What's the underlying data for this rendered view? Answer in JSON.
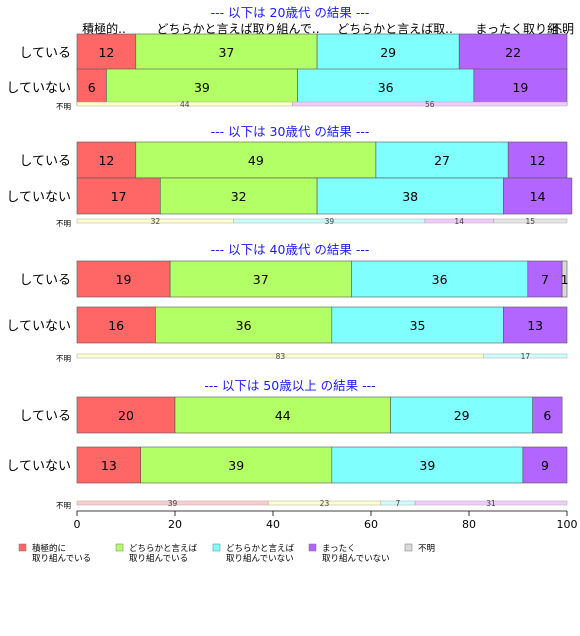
{
  "chart_data": {
    "type": "bar",
    "orientation": "horizontal",
    "stacked": "percent",
    "xlim": [
      0,
      100
    ],
    "x_ticks": [
      "0",
      "20",
      "40",
      "60",
      "80",
      "100"
    ],
    "column_headers": [
      "積極的..",
      "どちらかと言えば取り組んで..",
      "どちらかと言えば取..",
      "まったく取り組..",
      "不明"
    ],
    "categories": [
      "積極的に取り組んでいる",
      "どちらかと言えば取り組んでいる",
      "どちらかと言えば取り組んでいない",
      "まったく取り組んでいない",
      "不明"
    ],
    "legend": [
      {
        "lines": [
          "積極的に",
          "取り組んでいる"
        ],
        "color": "#ff6666"
      },
      {
        "lines": [
          "どちらかと言えば",
          "取り組んでいる"
        ],
        "color": "#b3ff66"
      },
      {
        "lines": [
          "どちらかと言えば",
          "取り組んでいない"
        ],
        "color": "#80ffff"
      },
      {
        "lines": [
          "まったく",
          "取り組んでいない"
        ],
        "color": "#b366ff"
      },
      {
        "lines": [
          "不明"
        ],
        "color": "#d9d9d9"
      }
    ],
    "legend_position": "bottom-left",
    "panels": [
      {
        "title": "--- 以下は 20歳代 の結果 ---",
        "rows": [
          {
            "label": "している",
            "values": [
              12,
              37,
              29,
              22,
              0
            ]
          },
          {
            "label": "していない",
            "values": [
              6,
              39,
              36,
              19,
              0
            ]
          }
        ],
        "unknown": {
          "label": "不明",
          "values": [
            0,
            44,
            0,
            56,
            0
          ]
        }
      },
      {
        "title": "--- 以下は 30歳代 の結果 ---",
        "rows": [
          {
            "label": "している",
            "values": [
              12,
              49,
              27,
              12,
              0
            ]
          },
          {
            "label": "していない",
            "values": [
              17,
              32,
              38,
              14,
              0
            ]
          }
        ],
        "unknown": {
          "label": "不明",
          "values": [
            0,
            32,
            39,
            14,
            15
          ]
        }
      },
      {
        "title": "--- 以下は 40歳代 の結果 ---",
        "rows": [
          {
            "label": "している",
            "values": [
              19,
              37,
              36,
              7,
              1
            ]
          },
          {
            "label": "していない",
            "values": [
              16,
              36,
              35,
              13,
              0
            ]
          }
        ],
        "unknown": {
          "label": "不明",
          "values": [
            0,
            83,
            17,
            0,
            0
          ]
        }
      },
      {
        "title": "--- 以下は 50歳以上 の結果 ---",
        "rows": [
          {
            "label": "している",
            "values": [
              20,
              44,
              29,
              6,
              0
            ]
          },
          {
            "label": "していない",
            "values": [
              13,
              39,
              39,
              9,
              0
            ]
          }
        ],
        "unknown": {
          "label": "不明",
          "values": [
            39,
            23,
            7,
            31,
            0
          ]
        }
      }
    ]
  }
}
